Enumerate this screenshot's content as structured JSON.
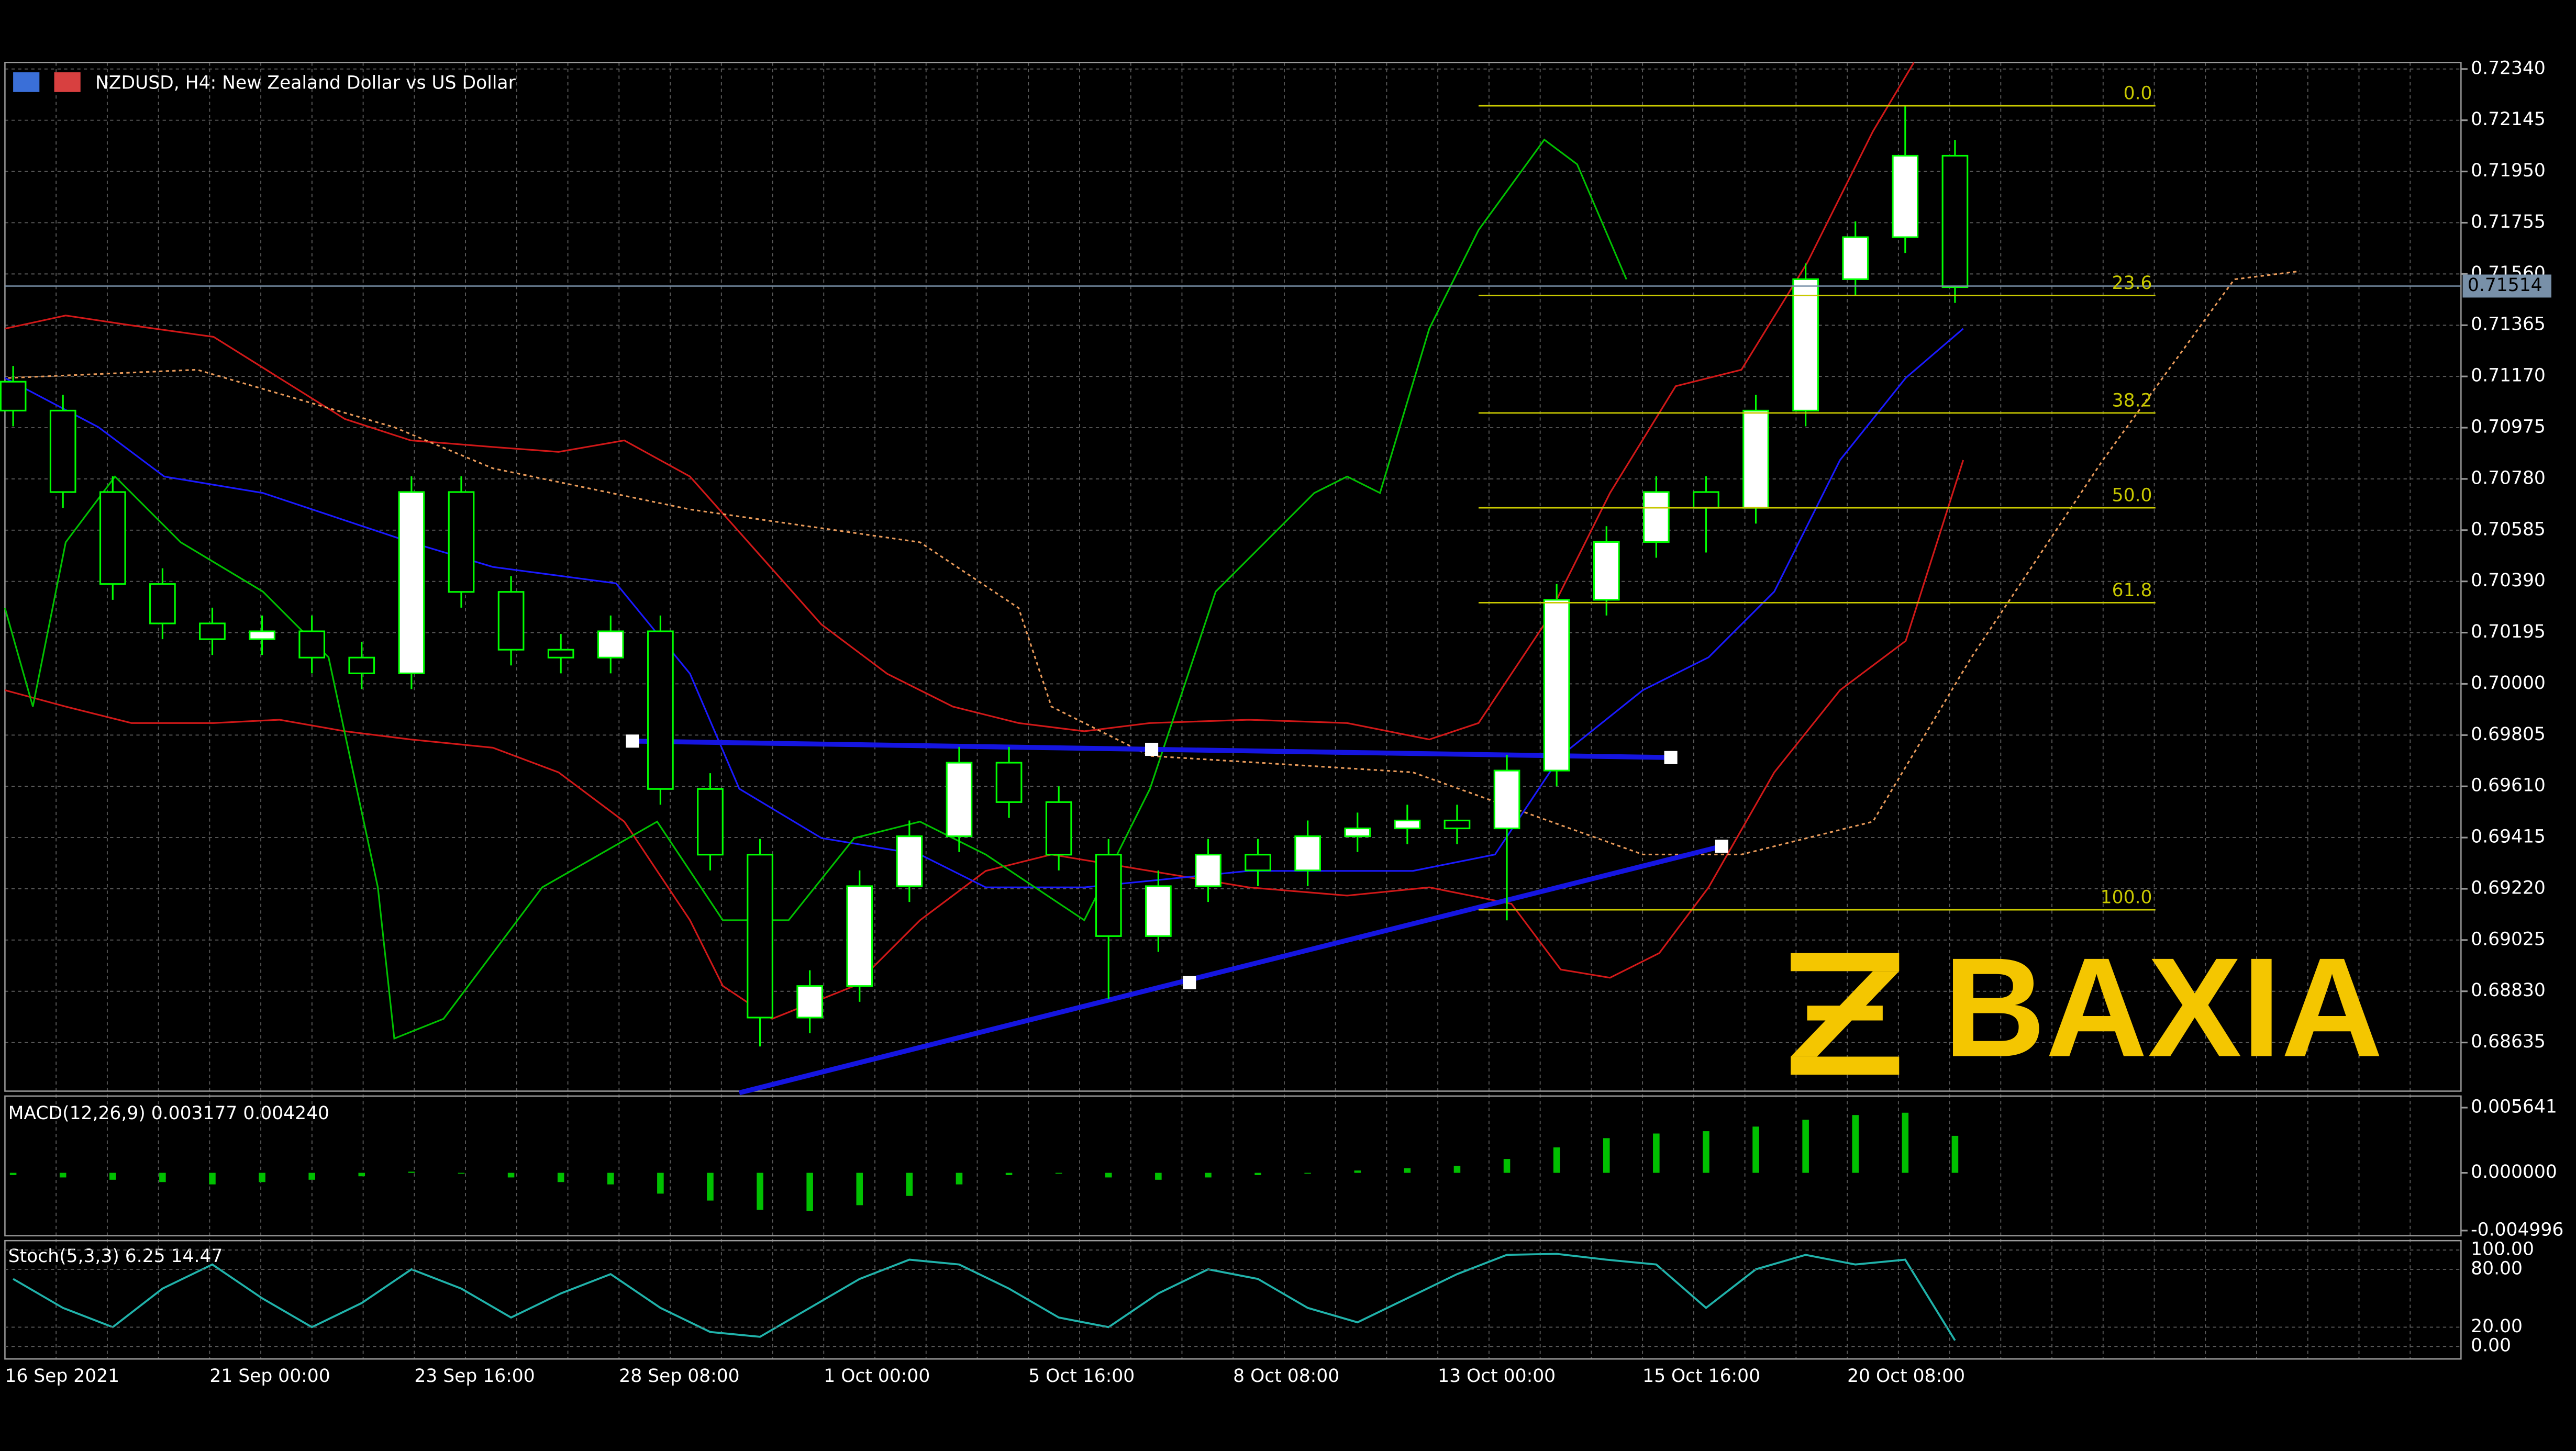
{
  "chart_data": {
    "type": "candlestick",
    "title": "NZDUSD, H4:  New Zealand Dollar vs US Dollar",
    "open": [
      0.7115,
      0.7104,
      0.7073,
      0.7038,
      0.7023,
      0.7017,
      0.702,
      0.701,
      0.7004,
      0.7073,
      0.7035,
      0.7013,
      0.701,
      0.702,
      0.696,
      0.6935,
      0.6873,
      0.6885,
      0.6923,
      0.6942,
      0.697,
      0.6955,
      0.6935,
      0.6904,
      0.6923,
      0.6935,
      0.6929,
      0.6942,
      0.6945,
      0.6948,
      0.6945,
      0.6967,
      0.7032,
      0.7054,
      0.7073,
      0.7067,
      0.7104,
      0.7154,
      0.717,
      0.7201
    ],
    "high": [
      0.7121,
      0.711,
      0.7079,
      0.7044,
      0.7029,
      0.7026,
      0.7026,
      0.7016,
      0.7079,
      0.7079,
      0.7041,
      0.7019,
      0.7026,
      0.7026,
      0.6966,
      0.6941,
      0.6891,
      0.6929,
      0.6948,
      0.6976,
      0.6976,
      0.6961,
      0.6941,
      0.6929,
      0.6941,
      0.6941,
      0.6948,
      0.6951,
      0.6954,
      0.6954,
      0.6973,
      0.7038,
      0.706,
      0.7079,
      0.7079,
      0.711,
      0.716,
      0.7176,
      0.722,
      0.7207
    ],
    "low": [
      0.7098,
      0.7067,
      0.7032,
      0.7017,
      0.7011,
      0.7011,
      0.7004,
      0.6998,
      0.6998,
      0.7029,
      0.7007,
      0.7004,
      0.7004,
      0.6954,
      0.6929,
      0.6862,
      0.6867,
      0.6879,
      0.6917,
      0.6936,
      0.6949,
      0.6929,
      0.688,
      0.6898,
      0.6917,
      0.6923,
      0.6923,
      0.6936,
      0.6939,
      0.6939,
      0.691,
      0.6961,
      0.7026,
      0.7048,
      0.705,
      0.7061,
      0.7098,
      0.7148,
      0.7164,
      0.7145
    ],
    "close": [
      0.7104,
      0.7073,
      0.7038,
      0.7023,
      0.7017,
      0.702,
      0.701,
      0.7004,
      0.7073,
      0.7035,
      0.7013,
      0.701,
      0.702,
      0.696,
      0.6935,
      0.6873,
      0.6885,
      0.6923,
      0.6942,
      0.697,
      0.6955,
      0.6935,
      0.6904,
      0.6923,
      0.6935,
      0.6929,
      0.6942,
      0.6945,
      0.6948,
      0.6945,
      0.6967,
      0.7032,
      0.7054,
      0.7073,
      0.7067,
      0.7104,
      0.7154,
      0.717,
      0.7201,
      0.7151
    ],
    "up_color": "#ffffff",
    "down_color": "#000000",
    "wick_color": "#00ff00",
    "ylim": [
      0.6845,
      0.72365
    ],
    "yticks": [
      {
        "value": 0.7234,
        "label": "0.72340"
      },
      {
        "value": 0.72145,
        "label": "0.72145"
      },
      {
        "value": 0.7195,
        "label": "0.71950"
      },
      {
        "value": 0.71755,
        "label": "0.71755"
      },
      {
        "value": 0.7156,
        "label": "0.71560"
      },
      {
        "value": 0.71365,
        "label": "0.71365"
      },
      {
        "value": 0.7117,
        "label": "0.71170"
      },
      {
        "value": 0.70975,
        "label": "0.70975"
      },
      {
        "value": 0.7078,
        "label": "0.70780"
      },
      {
        "value": 0.70585,
        "label": "0.70585"
      },
      {
        "value": 0.7039,
        "label": "0.70390"
      },
      {
        "value": 0.70195,
        "label": "0.70195"
      },
      {
        "value": 0.7,
        "label": "0.70000"
      },
      {
        "value": 0.69805,
        "label": "0.69805"
      },
      {
        "value": 0.6961,
        "label": "0.69610"
      },
      {
        "value": 0.69415,
        "label": "0.69415"
      },
      {
        "value": 0.6922,
        "label": "0.69220"
      },
      {
        "value": 0.69025,
        "label": "0.69025"
      },
      {
        "value": 0.6883,
        "label": "0.68830"
      },
      {
        "value": 0.68635,
        "label": "0.68635"
      }
    ],
    "grid": true,
    "current_price": 0.71514,
    "xtick_labels": [
      "16 Sep 2021",
      "21 Sep 00:00",
      "23 Sep 16:00",
      "28 Sep 08:00",
      "1 Oct 00:00",
      "5 Oct 16:00",
      "8 Oct 08:00",
      "13 Oct 00:00",
      "15 Oct 16:00",
      "20 Oct 08:00"
    ],
    "fibonacci": {
      "high": 0.722,
      "low": 0.6914,
      "color": "#c8c800",
      "levels": [
        {
          "value": 0,
          "label": "0.0"
        },
        {
          "value": 23.6,
          "label": "23.6"
        },
        {
          "value": 38.2,
          "label": "38.2"
        },
        {
          "value": 50,
          "label": "50.0"
        },
        {
          "value": 61.8,
          "label": "61.8"
        },
        {
          "value": 100,
          "label": "100.0"
        }
      ]
    },
    "macd": {
      "label": "MACD(12,26,9) 0.003177 0.004240",
      "color": "#00c000",
      "values": [
        -0.0002,
        -0.0004,
        -0.0006,
        -0.0008,
        -0.001,
        -0.0008,
        -0.0006,
        -0.0003,
        0.0001,
        0.0,
        -0.0004,
        -0.0008,
        -0.001,
        -0.0018,
        -0.0024,
        -0.0032,
        -0.0033,
        -0.0028,
        -0.002,
        -0.001,
        -0.0002,
        0.0,
        -0.0004,
        -0.0006,
        -0.0004,
        -0.0002,
        0.0,
        0.0002,
        0.0004,
        0.0006,
        0.0012,
        0.0022,
        0.003,
        0.0034,
        0.0036,
        0.004,
        0.0046,
        0.005,
        0.0052,
        0.0032
      ],
      "ylim": [
        -0.0053,
        0.0065
      ],
      "yticks": [
        0.005641,
        {
          "value": 0,
          "label": "0.000000"
        },
        -0.004996
      ]
    },
    "stoch": {
      "label": "Stoch(5,3,3) 6.25 14.47",
      "color": "#20b2aa",
      "values": [
        70,
        40,
        20,
        60,
        85,
        50,
        20,
        45,
        80,
        60,
        30,
        55,
        75,
        40,
        15,
        10,
        40,
        70,
        90,
        85,
        60,
        30,
        20,
        55,
        80,
        70,
        40,
        25,
        50,
        75,
        95,
        96,
        90,
        85,
        40,
        80,
        95,
        85,
        90,
        6.25
      ],
      "ylim": [
        -13,
        108
      ],
      "yticks": [
        {
          "value": 100,
          "label": "100.00"
        },
        {
          "value": 80,
          "label": "80.00"
        },
        {
          "value": 20,
          "label": "20.00"
        },
        {
          "value": 0,
          "label": "0.00"
        }
      ]
    },
    "watermark": "BAXIA"
  }
}
